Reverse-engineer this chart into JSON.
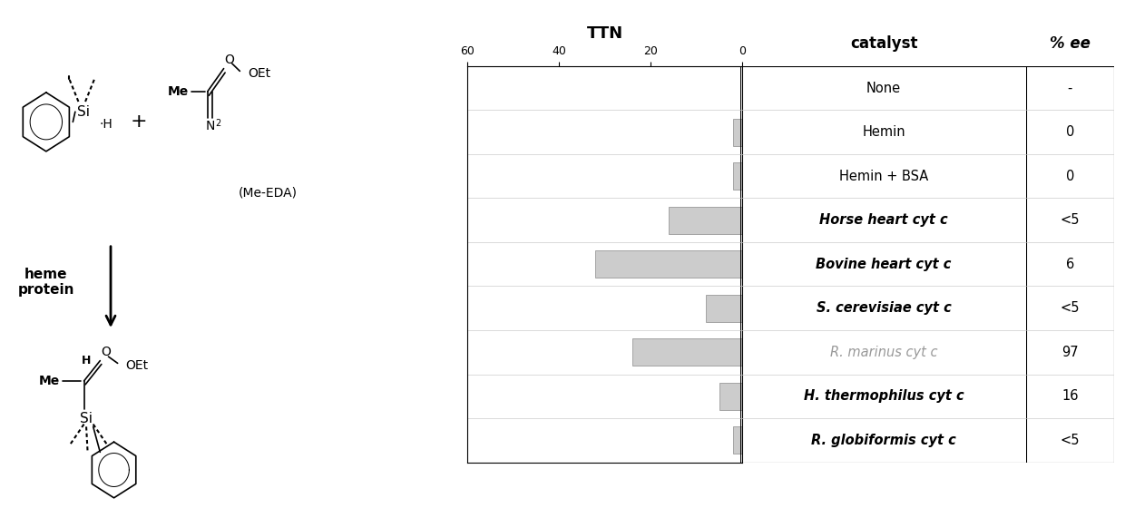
{
  "catalysts": [
    "None",
    "Hemin",
    "Hemin + BSA",
    "Horse heart cyt c",
    "Bovine heart cyt c",
    "S. cerevisiae cyt c",
    "R. marinus cyt c",
    "H. thermophilus cyt c",
    "R. globiformis cyt c"
  ],
  "catalyst_styles": [
    {
      "style": "normal",
      "weight": "normal",
      "color": "#000000"
    },
    {
      "style": "normal",
      "weight": "normal",
      "color": "#000000"
    },
    {
      "style": "normal",
      "weight": "normal",
      "color": "#000000"
    },
    {
      "style": "italic",
      "weight": "bold",
      "color": "#000000"
    },
    {
      "style": "italic",
      "weight": "bold",
      "color": "#000000"
    },
    {
      "style": "italic",
      "weight": "bold",
      "color": "#000000"
    },
    {
      "style": "italic",
      "weight": "normal",
      "color": "#999999"
    },
    {
      "style": "italic",
      "weight": "bold",
      "color": "#000000"
    },
    {
      "style": "italic",
      "weight": "bold",
      "color": "#000000"
    }
  ],
  "ttn_values": [
    0,
    2,
    2,
    16,
    32,
    8,
    24,
    5,
    2
  ],
  "ee_values": [
    "-",
    "0",
    "0",
    "<5",
    "6",
    "<5",
    "97",
    "16",
    "<5"
  ],
  "bar_color": "#cccccc",
  "bar_edge_color": "#999999",
  "ttn_axis_max": 60,
  "ttn_ticks": [
    60,
    40,
    20,
    0
  ],
  "ttn_label": "TTN",
  "catalyst_label": "catalyst",
  "ee_label": "% ee",
  "background_color": "#ffffff"
}
